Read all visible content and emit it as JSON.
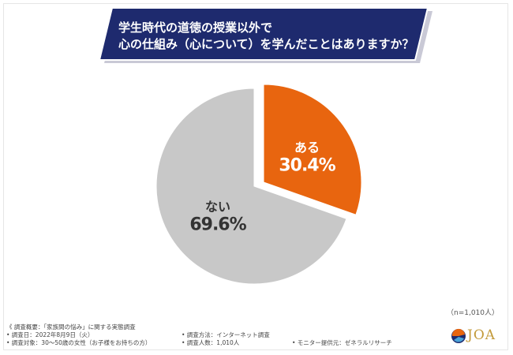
{
  "title": {
    "line1": "学生時代の道徳の授業以外で",
    "line2": "心の仕組み（心について）を学んだことはありますか？"
  },
  "chart_data": {
    "type": "pie",
    "slices": [
      {
        "label": "ある",
        "value": 30.4,
        "display": "30.4%",
        "color": "#e8650f"
      },
      {
        "label": "ない",
        "value": 69.6,
        "display": "69.6%",
        "color": "#c8c8c8"
      }
    ],
    "start": "12 o'clock",
    "direction": "clockwise"
  },
  "sample_note": "（n=1,010人）",
  "survey": {
    "overview": "《 調査概要：「家族間の悩み」に関する実態調査",
    "date": "• 調査日：2022年8月9日（火）",
    "target": "• 調査対象：30〜50歳の女性（お子様をお持ちの方）",
    "method": "• 調査方法：インターネット調査",
    "count": "• 調査人数：1,010人",
    "monitor": "• モニター提供元：ゼネラルリサーチ"
  },
  "logo": {
    "text": "JOA"
  },
  "colors": {
    "banner": "#1e2a6e",
    "banner_edge": "#ffffff",
    "accent": "#e8650f",
    "rest": "#c8c8c8"
  }
}
